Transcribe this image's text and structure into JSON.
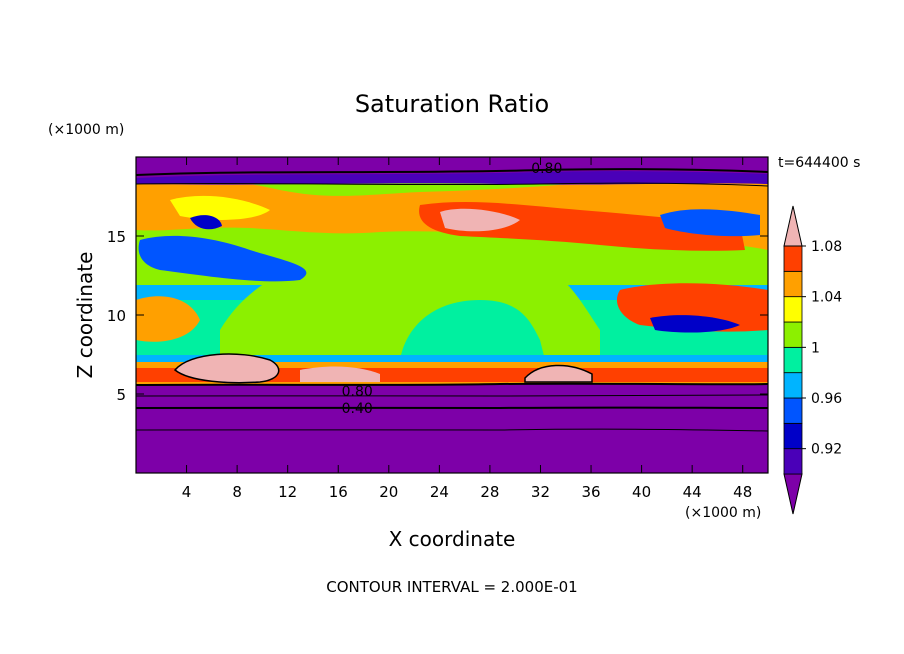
{
  "chart_data": {
    "type": "heatmap",
    "title": "Saturation Ratio",
    "xlabel": "X coordinate",
    "ylabel": "Z coordinate",
    "x_unit": "(×1000 m)",
    "y_unit": "(×1000 m)",
    "time_label": "t=644400 s",
    "footer": "CONTOUR INTERVAL = 2.000E-01",
    "xlim": [
      0,
      50
    ],
    "ylim": [
      0,
      20
    ],
    "x_ticks": [
      4,
      8,
      12,
      16,
      20,
      24,
      28,
      32,
      36,
      40,
      44,
      48
    ],
    "y_ticks": [
      5,
      10,
      15
    ],
    "colorbar": {
      "tick_labels": [
        "1.08",
        "1.04",
        "1",
        "0.96",
        "0.92"
      ],
      "levels": [
        0.9,
        0.92,
        0.94,
        0.96,
        0.98,
        1.0,
        1.02,
        1.04,
        1.06,
        1.08,
        1.1
      ],
      "colors": [
        "#7d00a8",
        "#4a00b8",
        "#0000c8",
        "#0055ff",
        "#00b4ff",
        "#00f0a0",
        "#8cf000",
        "#ffff00",
        "#ffa000",
        "#ff4000",
        "#f0b4b4"
      ]
    },
    "contour_labels": [
      {
        "text": "0.80",
        "x": 32.5,
        "z": 19.3
      },
      {
        "text": "0.80",
        "x": 17.5,
        "z": 5.2
      },
      {
        "text": "0.40",
        "x": 17.5,
        "z": 4.1
      }
    ],
    "profile": [
      {
        "z_range": [
          0,
          5.5
        ],
        "ratio": "0.40–0.80 (sub-saturated)"
      },
      {
        "z_range": [
          5.5,
          7.5
        ],
        "ratio": "1.04–1.10 (supersaturated layer)"
      },
      {
        "z_range": [
          7.5,
          13
        ],
        "ratio": "0.96–1.02 (near saturation)"
      },
      {
        "z_range": [
          13,
          18
        ],
        "ratio": "0.92–1.10 (mixed, supersaturated patches)"
      },
      {
        "z_range": [
          18.5,
          20
        ],
        "ratio": "< 0.90"
      }
    ]
  }
}
